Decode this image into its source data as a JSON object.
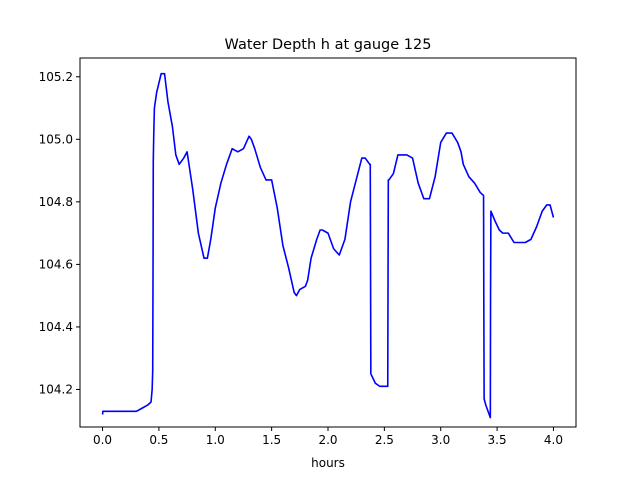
{
  "chart_data": {
    "type": "line",
    "title": "Water Depth h at gauge 125",
    "xlabel": "hours",
    "ylabel": "",
    "xlim": [
      -0.2,
      4.2
    ],
    "ylim": [
      104.08,
      105.26
    ],
    "xticks": [
      0.0,
      0.5,
      1.0,
      1.5,
      2.0,
      2.5,
      3.0,
      3.5,
      4.0
    ],
    "xtick_labels": [
      "0.0",
      "0.5",
      "1.0",
      "1.5",
      "2.0",
      "2.5",
      "3.0",
      "3.5",
      "4.0"
    ],
    "yticks": [
      104.2,
      104.4,
      104.6,
      104.8,
      105.0,
      105.2
    ],
    "ytick_labels": [
      "104.2",
      "104.4",
      "104.6",
      "104.8",
      "105.0",
      "105.2"
    ],
    "grid": false,
    "legend": "none",
    "series": [
      {
        "color": "#0000ff",
        "x": [
          0.0,
          0.003,
          0.01,
          0.1,
          0.2,
          0.25,
          0.3,
          0.35,
          0.4,
          0.43,
          0.44,
          0.445,
          0.448,
          0.45,
          0.455,
          0.46,
          0.48,
          0.5,
          0.52,
          0.55,
          0.58,
          0.6,
          0.62,
          0.65,
          0.68,
          0.72,
          0.75,
          0.8,
          0.85,
          0.9,
          0.93,
          0.96,
          1.0,
          1.05,
          1.1,
          1.15,
          1.2,
          1.25,
          1.3,
          1.32,
          1.35,
          1.4,
          1.45,
          1.5,
          1.55,
          1.6,
          1.65,
          1.7,
          1.72,
          1.75,
          1.8,
          1.82,
          1.85,
          1.9,
          1.93,
          1.95,
          2.0,
          2.05,
          2.1,
          2.15,
          2.2,
          2.25,
          2.3,
          2.33,
          2.37,
          2.375,
          2.38,
          2.42,
          2.46,
          2.5,
          2.53,
          2.535,
          2.54,
          2.58,
          2.62,
          2.65,
          2.7,
          2.75,
          2.8,
          2.85,
          2.9,
          2.95,
          3.0,
          3.05,
          3.1,
          3.15,
          3.18,
          3.2,
          3.25,
          3.3,
          3.35,
          3.38,
          3.382,
          3.385,
          3.4,
          3.42,
          3.44,
          3.442,
          3.445,
          3.48,
          3.52,
          3.55,
          3.6,
          3.65,
          3.7,
          3.75,
          3.8,
          3.85,
          3.9,
          3.94,
          3.97,
          4.0
        ],
        "y": [
          104.12,
          104.13,
          104.13,
          104.13,
          104.13,
          104.13,
          104.13,
          104.14,
          104.15,
          104.16,
          104.2,
          104.26,
          104.6,
          104.93,
          105.03,
          105.1,
          105.15,
          105.18,
          105.21,
          105.21,
          105.12,
          105.08,
          105.04,
          104.95,
          104.92,
          104.94,
          104.96,
          104.84,
          104.7,
          104.62,
          104.62,
          104.68,
          104.78,
          104.86,
          104.92,
          104.97,
          104.96,
          104.97,
          105.01,
          105.0,
          104.97,
          104.91,
          104.87,
          104.87,
          104.78,
          104.66,
          104.59,
          104.51,
          104.5,
          104.52,
          104.53,
          104.55,
          104.62,
          104.68,
          104.71,
          104.71,
          104.7,
          104.65,
          104.63,
          104.68,
          104.8,
          104.87,
          104.94,
          104.94,
          104.92,
          104.92,
          104.25,
          104.22,
          104.21,
          104.21,
          104.21,
          104.87,
          104.87,
          104.89,
          104.95,
          104.95,
          104.95,
          104.94,
          104.86,
          104.81,
          104.81,
          104.88,
          104.99,
          105.02,
          105.02,
          104.99,
          104.96,
          104.92,
          104.88,
          104.86,
          104.83,
          104.82,
          104.5,
          104.17,
          104.15,
          104.13,
          104.11,
          104.5,
          104.77,
          104.74,
          104.71,
          104.7,
          104.7,
          104.67,
          104.67,
          104.67,
          104.68,
          104.72,
          104.77,
          104.79,
          104.79,
          104.75
        ]
      }
    ]
  }
}
